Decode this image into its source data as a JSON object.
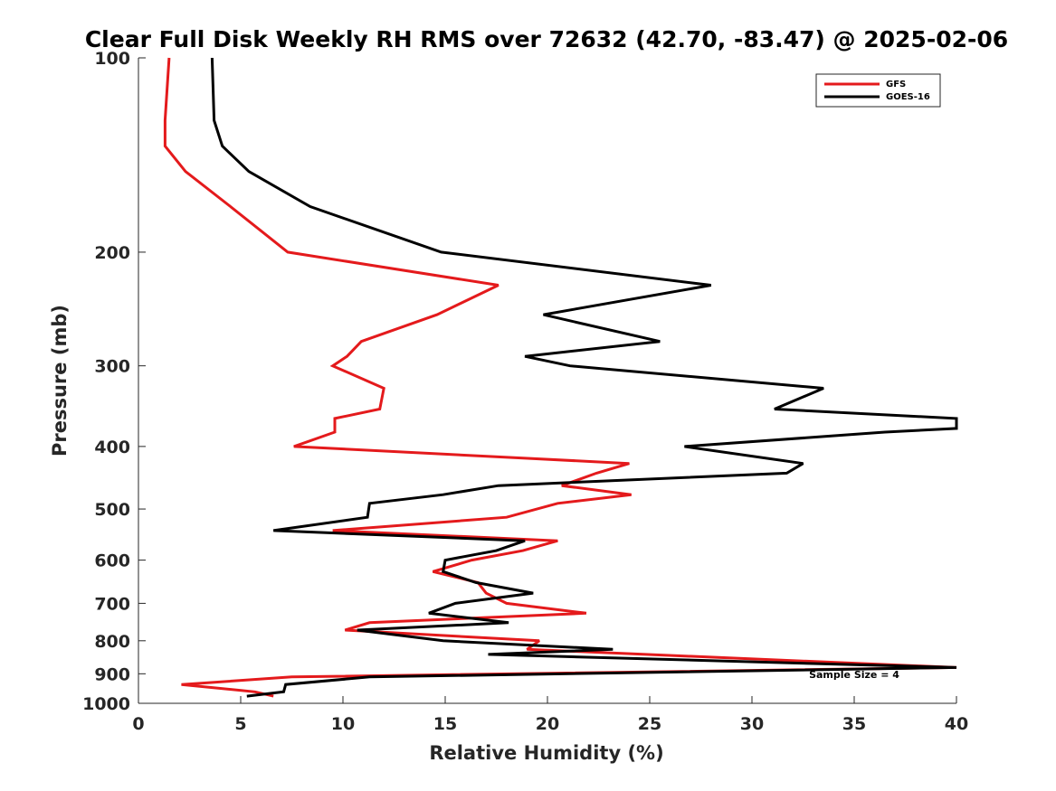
{
  "chart_data": {
    "type": "line",
    "title": "Clear Full Disk Weekly RH RMS over 72632 (42.70, -83.47) @ 2025-02-06",
    "xlabel": "Relative Humidity (%)",
    "ylabel": "Pressure (mb)",
    "xlim": [
      0,
      40
    ],
    "ylim": [
      100,
      1000
    ],
    "y_scale": "log",
    "y_reversed": true,
    "x_ticks": [
      "0",
      "5",
      "10",
      "15",
      "20",
      "25",
      "30",
      "35",
      "40"
    ],
    "y_ticks": [
      "100",
      "200",
      "300",
      "400",
      "500",
      "600",
      "700",
      "800",
      "900",
      "1000"
    ],
    "grid": false,
    "legend_position": "top-right",
    "annotation": "Sample Size = 4",
    "series": [
      {
        "name": "GFS",
        "color": "#e41a1c",
        "points": [
          [
            1.5,
            100
          ],
          [
            1.3,
            125
          ],
          [
            1.3,
            137
          ],
          [
            2.3,
            150
          ],
          [
            4.5,
            170
          ],
          [
            7.3,
            200
          ],
          [
            17.6,
            225
          ],
          [
            14.6,
            250
          ],
          [
            10.9,
            275
          ],
          [
            10.2,
            290
          ],
          [
            9.5,
            300
          ],
          [
            12.0,
            325
          ],
          [
            11.8,
            350
          ],
          [
            9.6,
            362
          ],
          [
            9.6,
            380
          ],
          [
            7.6,
            400
          ],
          [
            24.0,
            425
          ],
          [
            22.4,
            440
          ],
          [
            20.7,
            460
          ],
          [
            24.1,
            475
          ],
          [
            20.5,
            490
          ],
          [
            18.0,
            515
          ],
          [
            9.5,
            540
          ],
          [
            20.5,
            560
          ],
          [
            18.8,
            580
          ],
          [
            16.3,
            600
          ],
          [
            14.4,
            625
          ],
          [
            16.6,
            650
          ],
          [
            17.0,
            675
          ],
          [
            18.0,
            700
          ],
          [
            21.9,
            725
          ],
          [
            11.3,
            750
          ],
          [
            10.1,
            770
          ],
          [
            19.6,
            800
          ],
          [
            19.0,
            825
          ],
          [
            40.0,
            880
          ],
          [
            7.5,
            910
          ],
          [
            2.1,
            935
          ],
          [
            5.7,
            960
          ],
          [
            6.6,
            975
          ]
        ]
      },
      {
        "name": "GOES-16",
        "color": "#000000",
        "points": [
          [
            3.6,
            100
          ],
          [
            3.7,
            125
          ],
          [
            4.1,
            137
          ],
          [
            5.4,
            150
          ],
          [
            8.4,
            170
          ],
          [
            14.8,
            200
          ],
          [
            28.0,
            225
          ],
          [
            19.8,
            250
          ],
          [
            25.5,
            275
          ],
          [
            18.9,
            290
          ],
          [
            21.1,
            300
          ],
          [
            33.5,
            325
          ],
          [
            31.1,
            350
          ],
          [
            40.0,
            362
          ],
          [
            40.0,
            375
          ],
          [
            36.5,
            380
          ],
          [
            26.7,
            400
          ],
          [
            32.5,
            425
          ],
          [
            31.7,
            440
          ],
          [
            17.6,
            460
          ],
          [
            14.9,
            475
          ],
          [
            11.3,
            490
          ],
          [
            11.2,
            515
          ],
          [
            6.6,
            540
          ],
          [
            18.9,
            560
          ],
          [
            17.5,
            580
          ],
          [
            15.0,
            600
          ],
          [
            14.9,
            625
          ],
          [
            16.5,
            650
          ],
          [
            19.3,
            675
          ],
          [
            15.5,
            700
          ],
          [
            14.2,
            725
          ],
          [
            18.1,
            750
          ],
          [
            10.7,
            770
          ],
          [
            14.9,
            800
          ],
          [
            23.2,
            825
          ],
          [
            17.1,
            840
          ],
          [
            40.0,
            880
          ],
          [
            11.3,
            910
          ],
          [
            7.2,
            935
          ],
          [
            7.1,
            960
          ],
          [
            5.3,
            975
          ]
        ]
      }
    ]
  }
}
